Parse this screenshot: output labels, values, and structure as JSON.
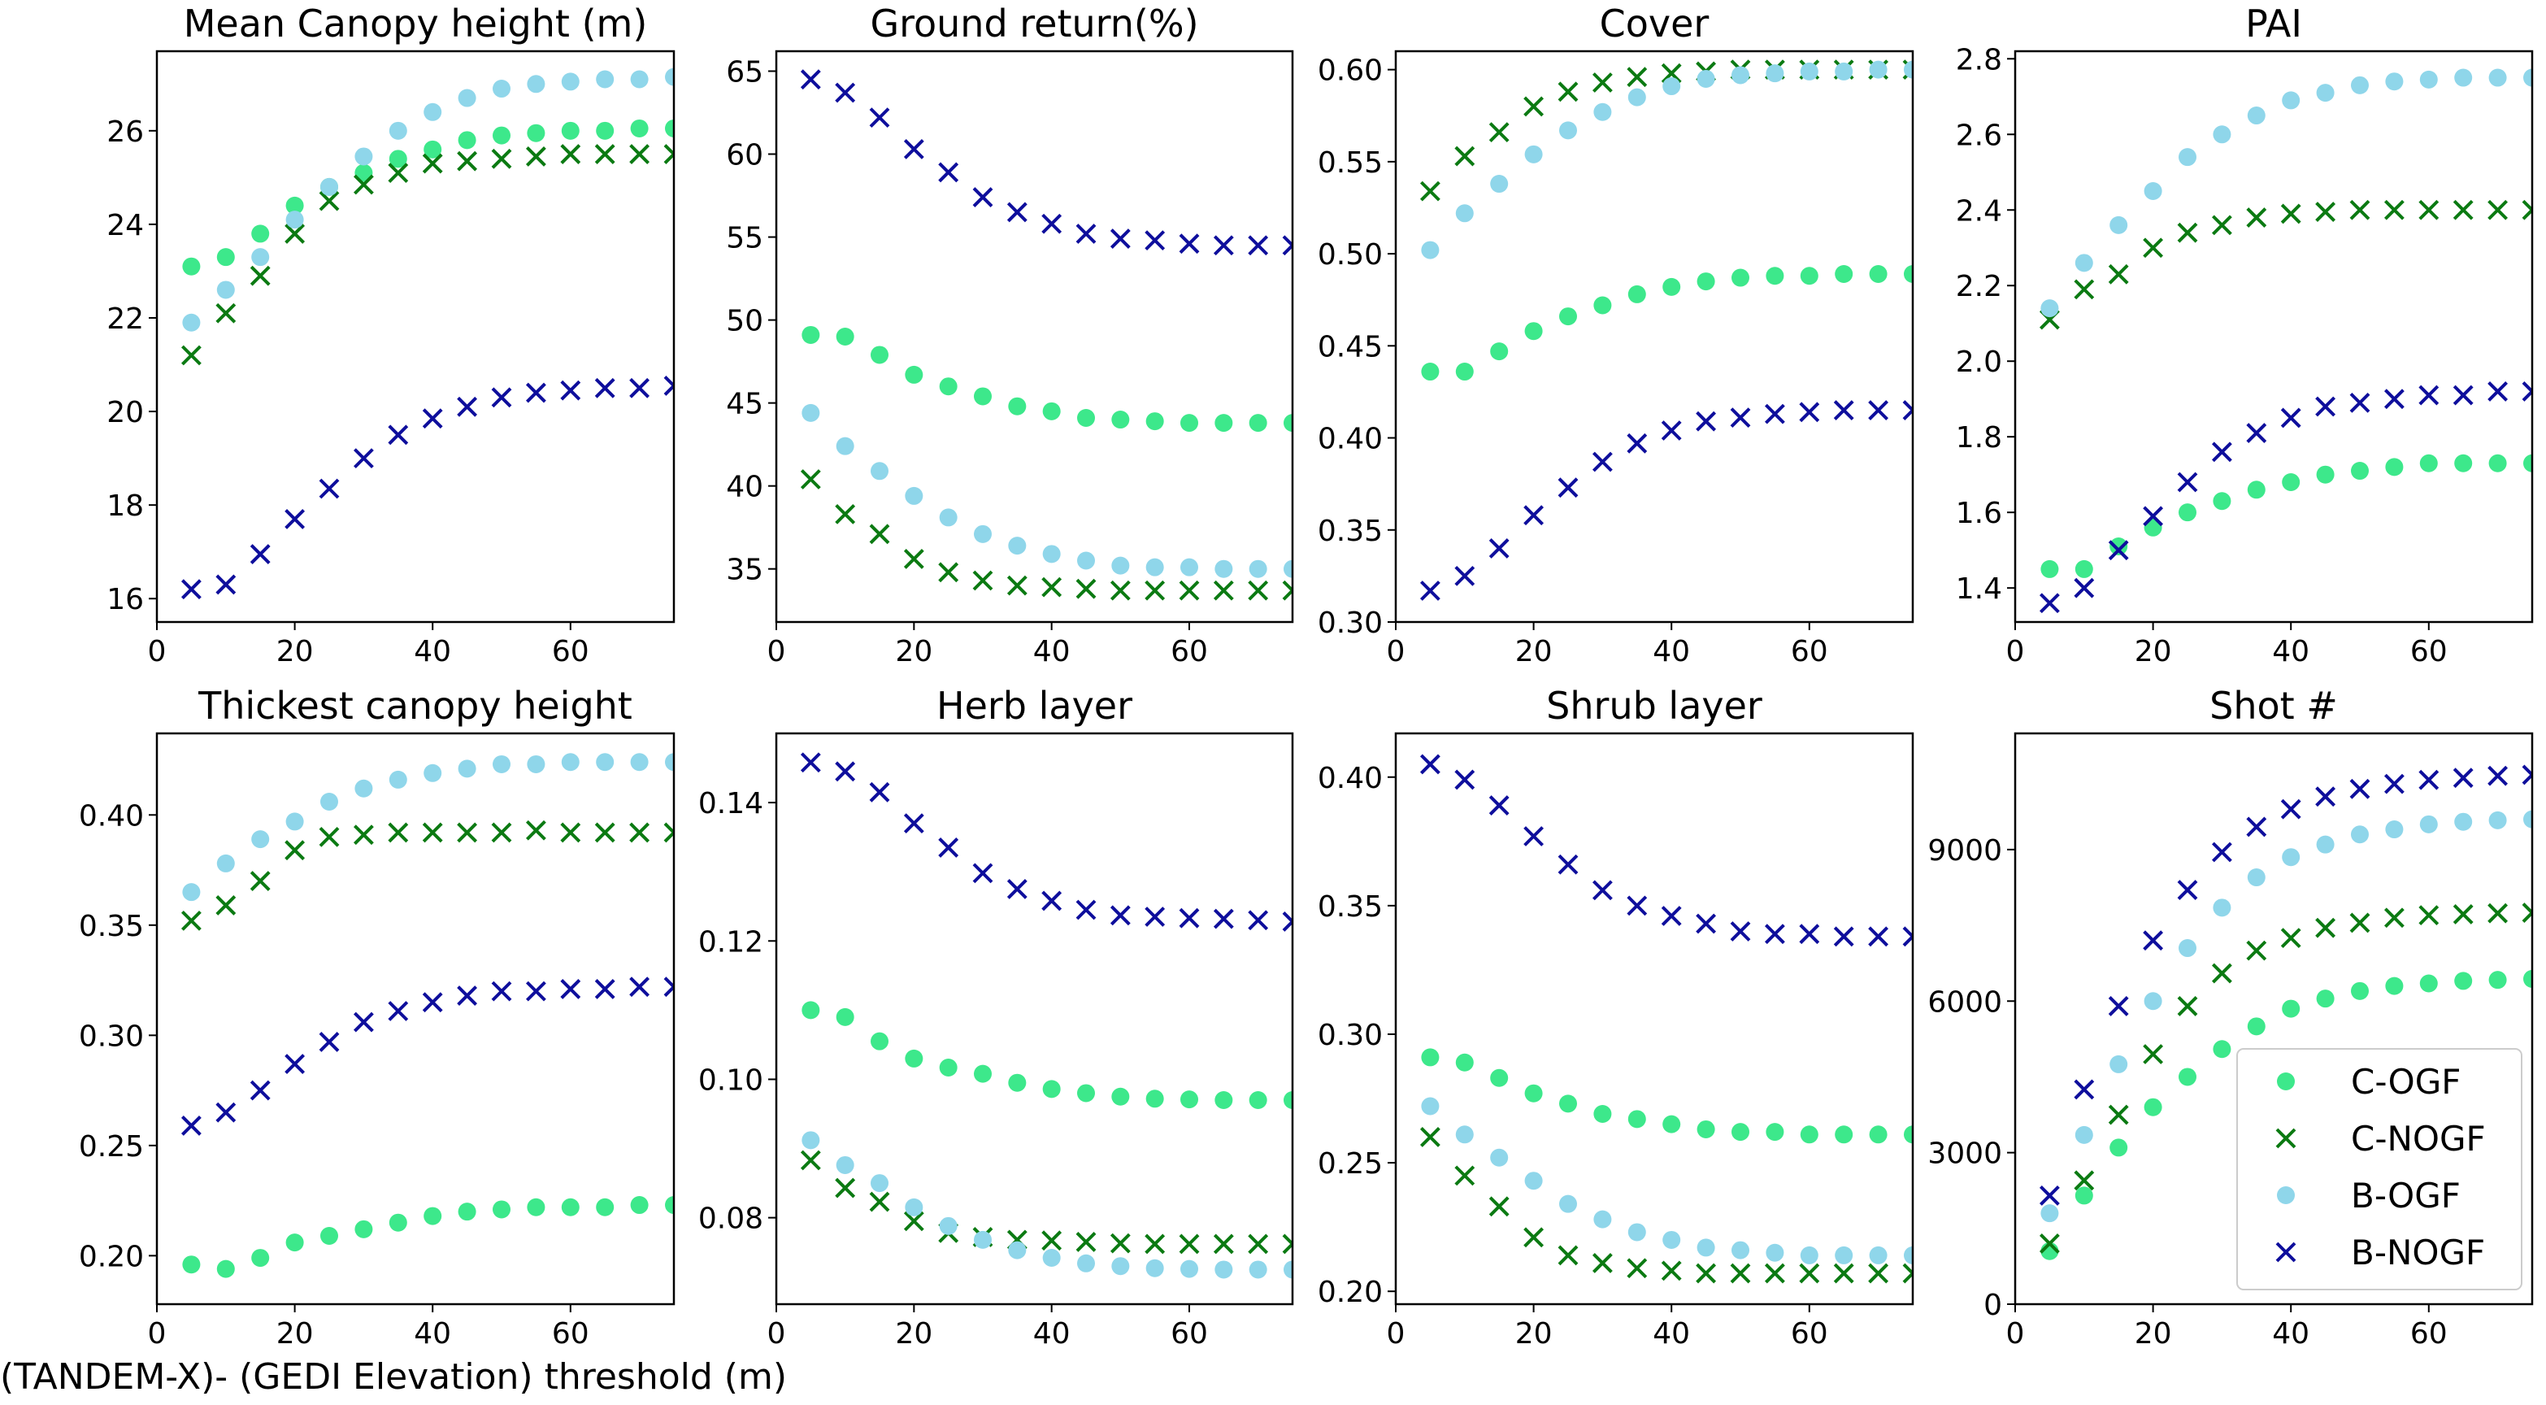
{
  "figure_xlabel": "(TANDEM-X)- (GEDI Elevation) threshold (m)",
  "colors": {
    "C-OGF": "#3de88b",
    "C-NOGF": "#0b7a12",
    "B-OGF": "#8fd6ea",
    "B-NOGF": "#0e0e9c"
  },
  "legend": [
    {
      "label": "C-OGF",
      "marker": "circle"
    },
    {
      "label": "C-NOGF",
      "marker": "x"
    },
    {
      "label": "B-OGF",
      "marker": "circle"
    },
    {
      "label": "B-NOGF",
      "marker": "x"
    }
  ],
  "chart_data": [
    {
      "type": "scatter",
      "title": "Mean Canopy height (m)",
      "x": [
        5,
        10,
        15,
        20,
        25,
        30,
        35,
        40,
        45,
        50,
        55,
        60,
        65,
        70,
        75
      ],
      "xlim": [
        0,
        75
      ],
      "xticks": [
        0,
        20,
        40,
        60
      ],
      "xtick_labels": [
        "0",
        "20",
        "40",
        "60"
      ],
      "ylim": [
        15.5,
        27.7
      ],
      "yticks": [
        16,
        18,
        20,
        22,
        24,
        26
      ],
      "ytick_labels": [
        "16",
        "18",
        "20",
        "22",
        "24",
        "26"
      ],
      "series": [
        {
          "name": "C-OGF",
          "values": [
            23.1,
            23.3,
            23.8,
            24.4,
            24.8,
            25.1,
            25.4,
            25.6,
            25.8,
            25.9,
            25.95,
            26.0,
            26.0,
            26.05,
            26.05
          ]
        },
        {
          "name": "C-NOGF",
          "values": [
            21.2,
            22.1,
            22.9,
            23.8,
            24.5,
            24.85,
            25.1,
            25.3,
            25.35,
            25.4,
            25.45,
            25.5,
            25.5,
            25.5,
            25.5
          ]
        },
        {
          "name": "B-OGF",
          "values": [
            21.9,
            22.6,
            23.3,
            24.1,
            24.8,
            25.45,
            26.0,
            26.4,
            26.7,
            26.9,
            27.0,
            27.05,
            27.1,
            27.1,
            27.15
          ]
        },
        {
          "name": "B-NOGF",
          "values": [
            16.2,
            16.3,
            16.95,
            17.7,
            18.35,
            19.0,
            19.5,
            19.85,
            20.1,
            20.3,
            20.4,
            20.45,
            20.5,
            20.5,
            20.55
          ]
        }
      ]
    },
    {
      "type": "scatter",
      "title": "Ground return(%)",
      "x": [
        5,
        10,
        15,
        20,
        25,
        30,
        35,
        40,
        45,
        50,
        55,
        60,
        65,
        70,
        75
      ],
      "xlim": [
        0,
        75
      ],
      "xticks": [
        0,
        20,
        40,
        60
      ],
      "xtick_labels": [
        "0",
        "20",
        "40",
        "60"
      ],
      "ylim": [
        31.8,
        66.2
      ],
      "yticks": [
        35,
        40,
        45,
        50,
        55,
        60,
        65
      ],
      "ytick_labels": [
        "35",
        "40",
        "45",
        "50",
        "55",
        "60",
        "65"
      ],
      "series": [
        {
          "name": "C-OGF",
          "values": [
            49.1,
            49.0,
            47.9,
            46.7,
            46.0,
            45.4,
            44.8,
            44.5,
            44.1,
            44.0,
            43.9,
            43.8,
            43.8,
            43.8,
            43.8
          ]
        },
        {
          "name": "C-NOGF",
          "values": [
            40.4,
            38.3,
            37.1,
            35.6,
            34.8,
            34.3,
            34.0,
            33.9,
            33.8,
            33.7,
            33.7,
            33.7,
            33.7,
            33.7,
            33.7
          ]
        },
        {
          "name": "B-OGF",
          "values": [
            44.4,
            42.4,
            40.9,
            39.4,
            38.1,
            37.1,
            36.4,
            35.9,
            35.5,
            35.2,
            35.1,
            35.1,
            35.0,
            35.0,
            35.0
          ]
        },
        {
          "name": "B-NOGF",
          "values": [
            64.5,
            63.7,
            62.2,
            60.3,
            58.9,
            57.4,
            56.5,
            55.8,
            55.2,
            54.9,
            54.8,
            54.6,
            54.5,
            54.5,
            54.5
          ]
        }
      ]
    },
    {
      "type": "scatter",
      "title": "Cover",
      "x": [
        5,
        10,
        15,
        20,
        25,
        30,
        35,
        40,
        45,
        50,
        55,
        60,
        65,
        70,
        75
      ],
      "xlim": [
        0,
        75
      ],
      "xticks": [
        0,
        20,
        40,
        60
      ],
      "xtick_labels": [
        "0",
        "20",
        "40",
        "60"
      ],
      "ylim": [
        0.3,
        0.61
      ],
      "yticks": [
        0.3,
        0.35,
        0.4,
        0.45,
        0.5,
        0.55,
        0.6
      ],
      "ytick_labels": [
        "0.30",
        "0.35",
        "0.40",
        "0.45",
        "0.50",
        "0.55",
        "0.60"
      ],
      "series": [
        {
          "name": "C-OGF",
          "values": [
            0.436,
            0.436,
            0.447,
            0.458,
            0.466,
            0.472,
            0.478,
            0.482,
            0.485,
            0.487,
            0.488,
            0.488,
            0.489,
            0.489,
            0.489
          ]
        },
        {
          "name": "C-NOGF",
          "values": [
            0.534,
            0.553,
            0.566,
            0.58,
            0.588,
            0.593,
            0.596,
            0.598,
            0.599,
            0.6,
            0.6,
            0.6,
            0.6,
            0.6,
            0.6
          ]
        },
        {
          "name": "B-OGF",
          "values": [
            0.502,
            0.522,
            0.538,
            0.554,
            0.567,
            0.577,
            0.585,
            0.591,
            0.595,
            0.597,
            0.598,
            0.599,
            0.599,
            0.6,
            0.6
          ]
        },
        {
          "name": "B-NOGF",
          "values": [
            0.317,
            0.325,
            0.34,
            0.358,
            0.373,
            0.387,
            0.397,
            0.404,
            0.409,
            0.411,
            0.413,
            0.414,
            0.415,
            0.415,
            0.415
          ]
        }
      ]
    },
    {
      "type": "scatter",
      "title": "PAI",
      "x": [
        5,
        10,
        15,
        20,
        25,
        30,
        35,
        40,
        45,
        50,
        55,
        60,
        65,
        70,
        75
      ],
      "xlim": [
        0,
        75
      ],
      "xticks": [
        0,
        20,
        40,
        60
      ],
      "xtick_labels": [
        "0",
        "20",
        "40",
        "60"
      ],
      "ylim": [
        1.31,
        2.82
      ],
      "yticks": [
        1.4,
        1.6,
        1.8,
        2.0,
        2.2,
        2.4,
        2.6,
        2.8
      ],
      "ytick_labels": [
        "1.4",
        "1.6",
        "1.8",
        "2.0",
        "2.2",
        "2.4",
        "2.6",
        "2.8"
      ],
      "series": [
        {
          "name": "C-OGF",
          "values": [
            1.45,
            1.45,
            1.51,
            1.56,
            1.6,
            1.63,
            1.66,
            1.68,
            1.7,
            1.71,
            1.72,
            1.73,
            1.73,
            1.73,
            1.73
          ]
        },
        {
          "name": "C-NOGF",
          "values": [
            2.11,
            2.19,
            2.23,
            2.3,
            2.34,
            2.36,
            2.38,
            2.39,
            2.395,
            2.4,
            2.4,
            2.4,
            2.4,
            2.4,
            2.4
          ]
        },
        {
          "name": "B-OGF",
          "values": [
            2.14,
            2.26,
            2.36,
            2.45,
            2.54,
            2.6,
            2.65,
            2.69,
            2.71,
            2.73,
            2.74,
            2.745,
            2.75,
            2.75,
            2.75
          ]
        },
        {
          "name": "B-NOGF",
          "values": [
            1.36,
            1.4,
            1.5,
            1.59,
            1.68,
            1.76,
            1.81,
            1.85,
            1.88,
            1.89,
            1.9,
            1.91,
            1.91,
            1.92,
            1.92
          ]
        }
      ]
    },
    {
      "type": "scatter",
      "title": "Thickest canopy height",
      "x": [
        5,
        10,
        15,
        20,
        25,
        30,
        35,
        40,
        45,
        50,
        55,
        60,
        65,
        70,
        75
      ],
      "xlim": [
        0,
        75
      ],
      "xticks": [
        0,
        20,
        40,
        60
      ],
      "xtick_labels": [
        "0",
        "20",
        "40",
        "60"
      ],
      "ylim": [
        0.178,
        0.437
      ],
      "yticks": [
        0.2,
        0.25,
        0.3,
        0.35,
        0.4
      ],
      "ytick_labels": [
        "0.20",
        "0.25",
        "0.30",
        "0.35",
        "0.40"
      ],
      "series": [
        {
          "name": "C-OGF",
          "values": [
            0.196,
            0.194,
            0.199,
            0.206,
            0.209,
            0.212,
            0.215,
            0.218,
            0.22,
            0.221,
            0.222,
            0.222,
            0.222,
            0.223,
            0.223
          ]
        },
        {
          "name": "C-NOGF",
          "values": [
            0.352,
            0.359,
            0.37,
            0.384,
            0.39,
            0.391,
            0.392,
            0.392,
            0.392,
            0.392,
            0.393,
            0.392,
            0.392,
            0.392,
            0.392
          ]
        },
        {
          "name": "B-OGF",
          "values": [
            0.365,
            0.378,
            0.389,
            0.397,
            0.406,
            0.412,
            0.416,
            0.419,
            0.421,
            0.423,
            0.423,
            0.424,
            0.424,
            0.424,
            0.424
          ]
        },
        {
          "name": "B-NOGF",
          "values": [
            0.259,
            0.265,
            0.275,
            0.287,
            0.297,
            0.306,
            0.311,
            0.315,
            0.318,
            0.32,
            0.32,
            0.321,
            0.321,
            0.322,
            0.322
          ]
        }
      ]
    },
    {
      "type": "scatter",
      "title": "Herb layer",
      "x": [
        5,
        10,
        15,
        20,
        25,
        30,
        35,
        40,
        45,
        50,
        55,
        60,
        65,
        70,
        75
      ],
      "xlim": [
        0,
        75
      ],
      "xticks": [
        0,
        20,
        40,
        60
      ],
      "xtick_labels": [
        "0",
        "20",
        "40",
        "60"
      ],
      "ylim": [
        0.0675,
        0.15
      ],
      "yticks": [
        0.08,
        0.1,
        0.12,
        0.14
      ],
      "ytick_labels": [
        "0.08",
        "0.10",
        "0.12",
        "0.14"
      ],
      "series": [
        {
          "name": "C-OGF",
          "values": [
            0.11,
            0.109,
            0.1055,
            0.103,
            0.1017,
            0.1008,
            0.0995,
            0.0986,
            0.098,
            0.0975,
            0.0972,
            0.0971,
            0.097,
            0.097,
            0.097
          ]
        },
        {
          "name": "C-NOGF",
          "values": [
            0.0883,
            0.0843,
            0.0823,
            0.0795,
            0.0778,
            0.0772,
            0.0768,
            0.0767,
            0.0765,
            0.0763,
            0.0762,
            0.0762,
            0.0762,
            0.0762,
            0.0762
          ]
        },
        {
          "name": "B-OGF",
          "values": [
            0.0912,
            0.0876,
            0.085,
            0.0815,
            0.0788,
            0.0768,
            0.0753,
            0.0742,
            0.0734,
            0.073,
            0.0727,
            0.0726,
            0.0725,
            0.0725,
            0.0725
          ]
        },
        {
          "name": "B-NOGF",
          "values": [
            0.1458,
            0.1445,
            0.1415,
            0.137,
            0.1335,
            0.1298,
            0.1275,
            0.1258,
            0.1245,
            0.1237,
            0.1235,
            0.1233,
            0.1232,
            0.123,
            0.1228
          ]
        }
      ]
    },
    {
      "type": "scatter",
      "title": "Shrub layer",
      "x": [
        5,
        10,
        15,
        20,
        25,
        30,
        35,
        40,
        45,
        50,
        55,
        60,
        65,
        70,
        75
      ],
      "xlim": [
        0,
        75
      ],
      "xticks": [
        0,
        20,
        40,
        60
      ],
      "xtick_labels": [
        "0",
        "20",
        "40",
        "60"
      ],
      "ylim": [
        0.195,
        0.417
      ],
      "yticks": [
        0.2,
        0.25,
        0.3,
        0.35,
        0.4
      ],
      "ytick_labels": [
        "0.20",
        "0.25",
        "0.30",
        "0.35",
        "0.40"
      ],
      "series": [
        {
          "name": "C-OGF",
          "values": [
            0.291,
            0.289,
            0.283,
            0.277,
            0.273,
            0.269,
            0.267,
            0.265,
            0.263,
            0.262,
            0.262,
            0.261,
            0.261,
            0.261,
            0.261
          ]
        },
        {
          "name": "C-NOGF",
          "values": [
            0.26,
            0.245,
            0.233,
            0.221,
            0.214,
            0.211,
            0.209,
            0.208,
            0.207,
            0.207,
            0.207,
            0.207,
            0.207,
            0.207,
            0.207
          ]
        },
        {
          "name": "B-OGF",
          "values": [
            0.272,
            0.261,
            0.252,
            0.243,
            0.234,
            0.228,
            0.223,
            0.22,
            0.217,
            0.216,
            0.215,
            0.214,
            0.214,
            0.214,
            0.214
          ]
        },
        {
          "name": "B-NOGF",
          "values": [
            0.405,
            0.399,
            0.389,
            0.377,
            0.366,
            0.356,
            0.35,
            0.346,
            0.343,
            0.34,
            0.339,
            0.339,
            0.338,
            0.338,
            0.338
          ]
        }
      ]
    },
    {
      "type": "scatter",
      "title": "Shot #",
      "x": [
        5,
        10,
        15,
        20,
        25,
        30,
        35,
        40,
        45,
        50,
        55,
        60,
        65,
        70,
        75
      ],
      "xlim": [
        0,
        75
      ],
      "xticks": [
        0,
        20,
        40,
        60
      ],
      "xtick_labels": [
        "0",
        "20",
        "40",
        "60"
      ],
      "ylim": [
        0,
        11300
      ],
      "yticks": [
        0,
        3000,
        6000,
        9000
      ],
      "ytick_labels": [
        "0",
        "3000",
        "6000",
        "9000"
      ],
      "series": [
        {
          "name": "C-OGF",
          "values": [
            1050,
            2150,
            3100,
            3900,
            4500,
            5050,
            5500,
            5850,
            6050,
            6200,
            6300,
            6350,
            6400,
            6420,
            6440
          ]
        },
        {
          "name": "C-NOGF",
          "values": [
            1200,
            2450,
            3750,
            4950,
            5900,
            6550,
            7000,
            7250,
            7450,
            7550,
            7650,
            7700,
            7720,
            7740,
            7750
          ]
        },
        {
          "name": "B-OGF",
          "values": [
            1800,
            3350,
            4750,
            6000,
            7050,
            7850,
            8450,
            8850,
            9100,
            9300,
            9400,
            9500,
            9550,
            9580,
            9600
          ]
        },
        {
          "name": "B-NOGF",
          "values": [
            2150,
            4250,
            5900,
            7200,
            8200,
            8950,
            9450,
            9800,
            10050,
            10200,
            10300,
            10380,
            10420,
            10460,
            10480
          ]
        }
      ]
    }
  ]
}
